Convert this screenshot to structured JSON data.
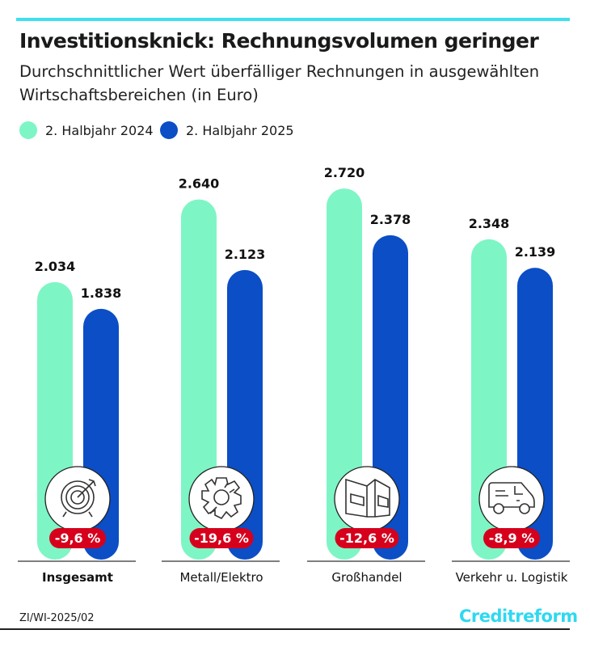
{
  "colors": {
    "accent": "#3ee0f0",
    "series1": "#7ef5c5",
    "series2": "#0b4ec6",
    "badge": "#d6001c"
  },
  "header": {
    "title": "Investitionsknick: Rechnungsvolumen geringer",
    "subtitle": "Durchschnittlicher Wert überfälliger Rechnungen in ausgewählten Wirtschaftsbereichen (in Euro)"
  },
  "chart_data": {
    "type": "bar",
    "categories": [
      "Insgesamt",
      "Metall/Elektro",
      "Großhandel",
      "Verkehr u. Logistik"
    ],
    "series": [
      {
        "name": "2. Halbjahr 2024",
        "values": [
          2034,
          2640,
          2720,
          2348
        ],
        "labels": [
          "2.034",
          "2.640",
          "2.720",
          "2.348"
        ]
      },
      {
        "name": "2. Halbjahr 2025",
        "values": [
          1838,
          2123,
          2378,
          2139
        ],
        "labels": [
          "1.838",
          "2.123",
          "2.378",
          "2.139"
        ]
      }
    ],
    "changes": [
      "-9,6 %",
      "-19,6 %",
      "-12,6 %",
      "-8,9 %"
    ],
    "icons": [
      "target-icon",
      "gear-plug-icon",
      "warehouse-icon",
      "van-icon"
    ],
    "legend": "top-left",
    "grid": false,
    "ylim": [
      0,
      2720
    ]
  },
  "footer": {
    "source": "ZI/WI-2025/02",
    "logo": "Creditreform"
  }
}
